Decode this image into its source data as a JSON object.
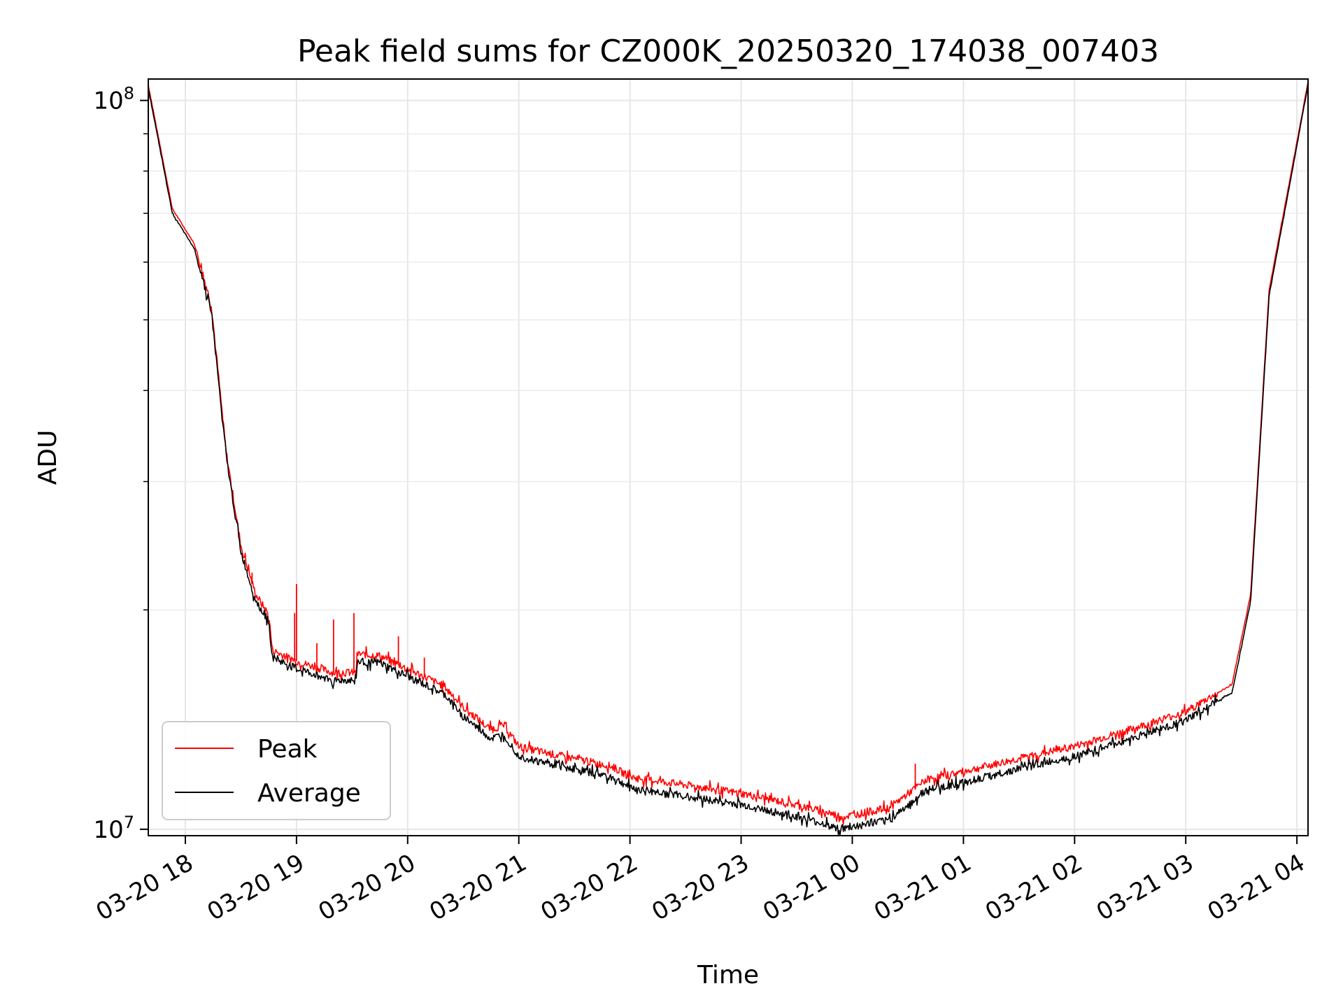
{
  "chart_data": {
    "type": "line",
    "title": "Peak field sums for CZ000K_20250320_174038_007403",
    "xlabel": "Time",
    "ylabel": "ADU",
    "yscale": "log",
    "ylim": [
      9800000,
      107000000
    ],
    "xlim": [
      "2025-03-20 17:40",
      "2025-03-21 04:06"
    ],
    "grid": true,
    "legend_position": "lower-left",
    "x_ticks": [
      {
        "t": "2025-03-20 18:00",
        "label": "03-20 18"
      },
      {
        "t": "2025-03-20 19:00",
        "label": "03-20 19"
      },
      {
        "t": "2025-03-20 20:00",
        "label": "03-20 20"
      },
      {
        "t": "2025-03-20 21:00",
        "label": "03-20 21"
      },
      {
        "t": "2025-03-20 22:00",
        "label": "03-20 22"
      },
      {
        "t": "2025-03-20 23:00",
        "label": "03-20 23"
      },
      {
        "t": "2025-03-21 00:00",
        "label": "03-21 00"
      },
      {
        "t": "2025-03-21 01:00",
        "label": "03-21 01"
      },
      {
        "t": "2025-03-21 02:00",
        "label": "03-21 02"
      },
      {
        "t": "2025-03-21 03:00",
        "label": "03-21 03"
      },
      {
        "t": "2025-03-21 04:00",
        "label": "03-21 04"
      }
    ],
    "y_ticks": [
      {
        "v": 10000000,
        "base": "10",
        "exp": "7"
      },
      {
        "v": 100000000,
        "base": "10",
        "exp": "8"
      }
    ],
    "series": [
      {
        "name": "Peak",
        "color": "#ff0000",
        "points": [
          [
            "2025-03-20 17:40",
            105000000
          ],
          [
            "2025-03-20 17:53",
            71000000
          ],
          [
            "2025-03-20 18:05",
            63500000
          ],
          [
            "2025-03-20 18:14",
            52500000
          ],
          [
            "2025-03-20 18:22",
            33000000
          ],
          [
            "2025-03-20 18:30",
            24500000
          ],
          [
            "2025-03-20 18:38",
            21000000
          ],
          [
            "2025-03-20 18:45",
            19700000
          ],
          [
            "2025-03-20 18:47",
            17600000
          ],
          [
            "2025-03-20 19:00",
            17000000
          ],
          [
            "2025-03-20 19:20",
            16400000
          ],
          [
            "2025-03-20 19:32",
            16400000
          ],
          [
            "2025-03-20 19:33",
            17400000
          ],
          [
            "2025-03-20 19:45",
            17300000
          ],
          [
            "2025-03-20 20:00",
            16600000
          ],
          [
            "2025-03-20 20:20",
            15700000
          ],
          [
            "2025-03-20 20:30",
            14700000
          ],
          [
            "2025-03-20 20:45",
            13700000
          ],
          [
            "2025-03-20 20:52",
            13900000
          ],
          [
            "2025-03-20 21:00",
            13000000
          ],
          [
            "2025-03-20 21:10",
            12800000
          ],
          [
            "2025-03-20 21:30",
            12500000
          ],
          [
            "2025-03-20 21:50",
            12200000
          ],
          [
            "2025-03-20 22:00",
            11800000
          ],
          [
            "2025-03-20 22:30",
            11500000
          ],
          [
            "2025-03-20 23:00",
            11200000
          ],
          [
            "2025-03-20 23:30",
            10800000
          ],
          [
            "2025-03-20 23:55",
            10400000
          ],
          [
            "2025-03-21 00:20",
            10700000
          ],
          [
            "2025-03-21 00:40",
            11700000
          ],
          [
            "2025-03-21 01:00",
            12000000
          ],
          [
            "2025-03-21 01:30",
            12500000
          ],
          [
            "2025-03-21 02:00",
            13000000
          ],
          [
            "2025-03-21 02:30",
            13700000
          ],
          [
            "2025-03-21 03:00",
            14500000
          ],
          [
            "2025-03-21 03:25",
            15800000
          ],
          [
            "2025-03-21 03:35",
            21000000
          ],
          [
            "2025-03-21 03:45",
            55000000
          ],
          [
            "2025-03-21 03:55",
            75000000
          ],
          [
            "2025-03-21 04:06",
            106000000
          ]
        ]
      },
      {
        "name": "Average",
        "color": "#000000",
        "points": [
          [
            "2025-03-20 17:40",
            104000000
          ],
          [
            "2025-03-20 17:53",
            70000000
          ],
          [
            "2025-03-20 18:05",
            62500000
          ],
          [
            "2025-03-20 18:14",
            51500000
          ],
          [
            "2025-03-20 18:22",
            32500000
          ],
          [
            "2025-03-20 18:30",
            24000000
          ],
          [
            "2025-03-20 18:38",
            20600000
          ],
          [
            "2025-03-20 18:45",
            19300000
          ],
          [
            "2025-03-20 18:47",
            17200000
          ],
          [
            "2025-03-20 19:00",
            16600000
          ],
          [
            "2025-03-20 19:20",
            16000000
          ],
          [
            "2025-03-20 19:32",
            16000000
          ],
          [
            "2025-03-20 19:33",
            17000000
          ],
          [
            "2025-03-20 19:45",
            16900000
          ],
          [
            "2025-03-20 20:00",
            16200000
          ],
          [
            "2025-03-20 20:20",
            15300000
          ],
          [
            "2025-03-20 20:30",
            14300000
          ],
          [
            "2025-03-20 20:45",
            13300000
          ],
          [
            "2025-03-20 20:52",
            13500000
          ],
          [
            "2025-03-20 21:00",
            12600000
          ],
          [
            "2025-03-20 21:10",
            12400000
          ],
          [
            "2025-03-20 21:30",
            12100000
          ],
          [
            "2025-03-20 21:50",
            11800000
          ],
          [
            "2025-03-20 22:00",
            11400000
          ],
          [
            "2025-03-20 22:30",
            11100000
          ],
          [
            "2025-03-20 23:00",
            10800000
          ],
          [
            "2025-03-20 23:30",
            10400000
          ],
          [
            "2025-03-20 23:55",
            10000000
          ],
          [
            "2025-03-21 00:20",
            10300000
          ],
          [
            "2025-03-21 00:40",
            11300000
          ],
          [
            "2025-03-21 01:00",
            11600000
          ],
          [
            "2025-03-21 01:30",
            12100000
          ],
          [
            "2025-03-21 02:00",
            12600000
          ],
          [
            "2025-03-21 02:30",
            13300000
          ],
          [
            "2025-03-21 03:00",
            14100000
          ],
          [
            "2025-03-21 03:25",
            15400000
          ],
          [
            "2025-03-21 03:35",
            20500000
          ],
          [
            "2025-03-21 03:45",
            54000000
          ],
          [
            "2025-03-21 03:55",
            74000000
          ],
          [
            "2025-03-21 04:06",
            105000000
          ]
        ]
      }
    ],
    "spikes": [
      {
        "series": "Peak",
        "t": "2025-03-20 18:36",
        "v": 22500000
      },
      {
        "series": "Peak",
        "t": "2025-03-20 18:59",
        "v": 19800000
      },
      {
        "series": "Peak",
        "t": "2025-03-20 19:00",
        "v": 21700000
      },
      {
        "series": "Peak",
        "t": "2025-03-20 19:11",
        "v": 18000000
      },
      {
        "series": "Peak",
        "t": "2025-03-20 19:20",
        "v": 19400000
      },
      {
        "series": "Peak",
        "t": "2025-03-20 19:31",
        "v": 19800000
      },
      {
        "series": "Peak",
        "t": "2025-03-20 19:55",
        "v": 18400000
      },
      {
        "series": "Peak",
        "t": "2025-03-20 20:09",
        "v": 17200000
      },
      {
        "series": "Peak",
        "t": "2025-03-21 00:34",
        "v": 12300000
      }
    ]
  }
}
